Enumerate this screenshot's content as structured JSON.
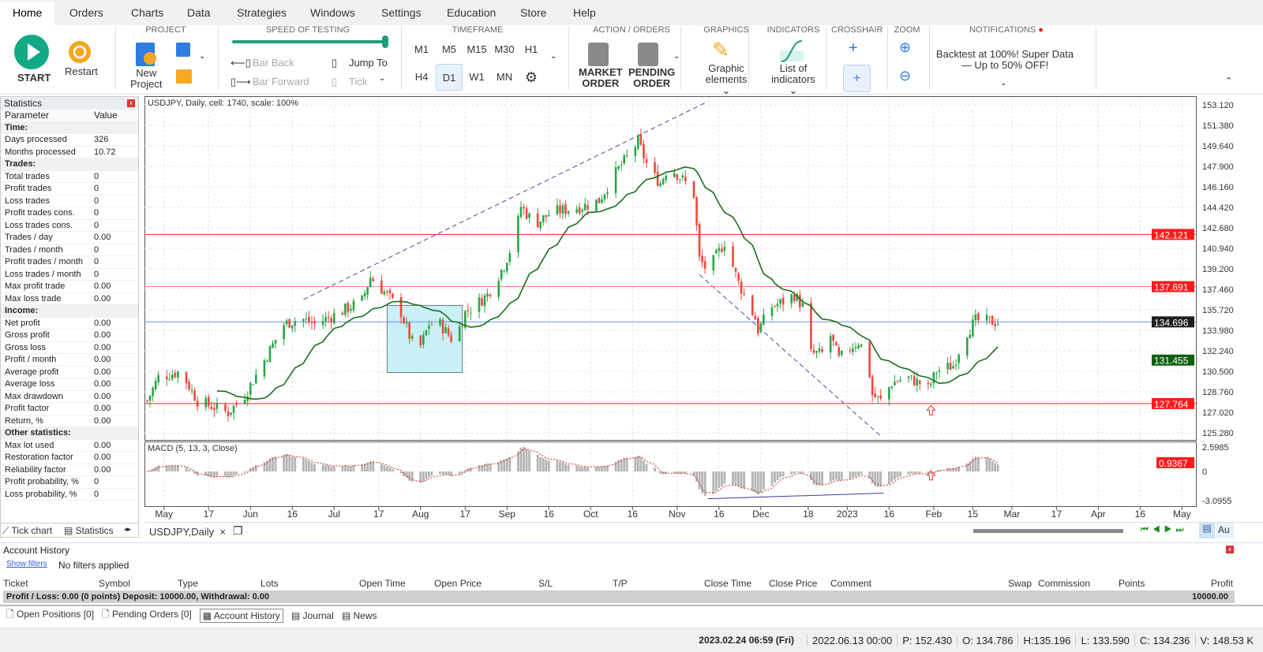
{
  "menu": [
    "Home",
    "Orders",
    "Charts",
    "Data",
    "Strategies",
    "Windows",
    "Settings",
    "Education",
    "Store",
    "Help"
  ],
  "ribbon": {
    "start": "START",
    "restart": "Restart",
    "project": "PROJECT",
    "new_project": [
      "New",
      "Project"
    ],
    "speed": "SPEED OF TESTING",
    "speed_value": 1.0,
    "bar_back": "Bar Back",
    "bar_forward": "Bar Forward",
    "jump_to": "Jump To",
    "tick": "Tick",
    "timeframe": "TIMEFRAME",
    "tf_row1": [
      "M1",
      "M5",
      "M15",
      "M30",
      "H1"
    ],
    "tf_row2": [
      "H4",
      "D1",
      "W1",
      "MN"
    ],
    "tf_selected": "D1",
    "action": "ACTION / ORDERS",
    "market": [
      "MARKET",
      "ORDER"
    ],
    "pending": [
      "PENDING",
      "ORDER"
    ],
    "graphics": "GRAPHICS",
    "graphic_elements": [
      "Graphic",
      "elements"
    ],
    "indicators": "INDICATORS",
    "list_indicators": [
      "List of",
      "indicators"
    ],
    "crosshair": "CROSSHAIR",
    "zoom": "ZOOM",
    "notifications": "NOTIFICATIONS",
    "notif_text": [
      "Backtest at 100%! Super Data",
      "— Up to 50% OFF!"
    ]
  },
  "stats": {
    "title": "Statistics",
    "col_param": "Parameter",
    "col_value": "Value",
    "rows": [
      {
        "s": "Time:"
      },
      {
        "p": "Days processed",
        "v": "326"
      },
      {
        "p": "Months processed",
        "v": "10.72"
      },
      {
        "s": "Trades:"
      },
      {
        "p": "Total trades",
        "v": "0"
      },
      {
        "p": "Profit trades",
        "v": "0"
      },
      {
        "p": "Loss trades",
        "v": "0"
      },
      {
        "p": "Profit trades cons.",
        "v": "0"
      },
      {
        "p": "Loss trades cons.",
        "v": "0"
      },
      {
        "p": "Trades / day",
        "v": "0.00"
      },
      {
        "p": "Trades / month",
        "v": "0"
      },
      {
        "p": "Profit trades / month",
        "v": "0"
      },
      {
        "p": "Loss trades / month",
        "v": "0"
      },
      {
        "p": "Max profit trade",
        "v": "0.00"
      },
      {
        "p": "Max loss trade",
        "v": "0.00"
      },
      {
        "s": "Income:"
      },
      {
        "p": "Net profit",
        "v": "0.00"
      },
      {
        "p": "Gross profit",
        "v": "0.00"
      },
      {
        "p": "Gross loss",
        "v": "0.00"
      },
      {
        "p": "Profit / month",
        "v": "0.00"
      },
      {
        "p": "Average profit",
        "v": "0.00"
      },
      {
        "p": "Average loss",
        "v": "0.00"
      },
      {
        "p": "Max drawdown",
        "v": "0.00"
      },
      {
        "p": "Profit factor",
        "v": "0.00"
      },
      {
        "p": "Return, %",
        "v": "0.00"
      },
      {
        "s": "Other statistics:"
      },
      {
        "p": "Max lot used",
        "v": "0.00"
      },
      {
        "p": "Restoration factor",
        "v": "0.00"
      },
      {
        "p": "Reliability factor",
        "v": "0.00"
      },
      {
        "p": "Profit probability, %",
        "v": "0"
      },
      {
        "p": "Loss probability, %",
        "v": "0"
      }
    ],
    "tabs": [
      "Tick chart",
      "Statistics"
    ]
  },
  "chart_tab": "USDJPY,Daily",
  "chart_data": {
    "type": "candlestick",
    "title": "USDJPY, Daily, cell: 1740, scale: 100%",
    "xlim": [
      "2022-04-24",
      "2023-05-06"
    ],
    "ylim": [
      125.28,
      153.12
    ],
    "yticks": [
      "153.120",
      "151.380",
      "149.640",
      "147.900",
      "146.160",
      "144.420",
      "142.680",
      "140.940",
      "139.200",
      "137.460",
      "135.720",
      "133.980",
      "132.240",
      "130.500",
      "128.760",
      "127.020",
      "125.280"
    ],
    "xticks": [
      [
        "2022-05-01",
        "May"
      ],
      [
        "2022-05-17",
        "17"
      ],
      [
        "2022-06-01",
        "Jun"
      ],
      [
        "2022-06-16",
        "16"
      ],
      [
        "2022-07-01",
        "Jul"
      ],
      [
        "2022-07-17",
        "17"
      ],
      [
        "2022-08-01",
        "Aug"
      ],
      [
        "2022-08-17",
        "17"
      ],
      [
        "2022-09-01",
        "Sep"
      ],
      [
        "2022-09-16",
        "16"
      ],
      [
        "2022-10-01",
        "Oct"
      ],
      [
        "2022-10-16",
        "16"
      ],
      [
        "2022-11-01",
        "Nov"
      ],
      [
        "2022-11-16",
        "16"
      ],
      [
        "2022-12-01",
        "Dec"
      ],
      [
        "2022-12-18",
        "18"
      ],
      [
        "2023-01-01",
        "2023"
      ],
      [
        "2023-01-16",
        "16"
      ],
      [
        "2023-02-01",
        "Feb"
      ],
      [
        "2023-02-15",
        "15"
      ],
      [
        "2023-03-01",
        "Mar"
      ],
      [
        "2023-03-17",
        "17"
      ],
      [
        "2023-04-01",
        "Apr"
      ],
      [
        "2023-04-16",
        "16"
      ],
      [
        "2023-05-01",
        "May"
      ]
    ],
    "close_anchors": [
      [
        "2022-04-25",
        128
      ],
      [
        "2022-04-29",
        130
      ],
      [
        "2022-05-07",
        130.5
      ],
      [
        "2022-05-13",
        128
      ],
      [
        "2022-05-24",
        127
      ],
      [
        "2022-05-30",
        128.5
      ],
      [
        "2022-06-05",
        131
      ],
      [
        "2022-06-13",
        134.5
      ],
      [
        "2022-06-19",
        135
      ],
      [
        "2022-06-24",
        134.5
      ],
      [
        "2022-07-03",
        135.5
      ],
      [
        "2022-07-11",
        136.5
      ],
      [
        "2022-07-14",
        138.5
      ],
      [
        "2022-07-20",
        137
      ],
      [
        "2022-07-25",
        135.5
      ],
      [
        "2022-07-28",
        133.5
      ],
      [
        "2022-07-31",
        132
      ],
      [
        "2022-08-04",
        134.5
      ],
      [
        "2022-08-08",
        134.5
      ],
      [
        "2022-08-13",
        133
      ],
      [
        "2022-08-17",
        135.5
      ],
      [
        "2022-08-20",
        136
      ],
      [
        "2022-08-25",
        137
      ],
      [
        "2022-08-31",
        139.5
      ],
      [
        "2022-09-04",
        142
      ],
      [
        "2022-09-06",
        144.5
      ],
      [
        "2022-09-11",
        143
      ],
      [
        "2022-09-17",
        144
      ],
      [
        "2022-09-28",
        144.5
      ],
      [
        "2022-10-04",
        145
      ],
      [
        "2022-10-09",
        147
      ],
      [
        "2022-10-15",
        149
      ],
      [
        "2022-10-18",
        150
      ],
      [
        "2022-10-22",
        147.5
      ],
      [
        "2022-10-26",
        146.5
      ],
      [
        "2022-10-29",
        148
      ],
      [
        "2022-11-04",
        146.5
      ],
      [
        "2022-11-07",
        145.5
      ],
      [
        "2022-11-09",
        140
      ],
      [
        "2022-11-12",
        139
      ],
      [
        "2022-11-18",
        141.5
      ],
      [
        "2022-11-23",
        138
      ],
      [
        "2022-11-29",
        135
      ],
      [
        "2022-11-30",
        134
      ],
      [
        "2022-12-05",
        136
      ],
      [
        "2022-12-10",
        136.5
      ],
      [
        "2022-12-13",
        137
      ],
      [
        "2022-12-16",
        136
      ],
      [
        "2022-12-19",
        132
      ],
      [
        "2022-12-23",
        132
      ],
      [
        "2022-12-26",
        133.5
      ],
      [
        "2022-12-29",
        131.5
      ],
      [
        "2023-01-02",
        132.5
      ],
      [
        "2023-01-05",
        133
      ],
      [
        "2023-01-08",
        132
      ],
      [
        "2023-01-10",
        128.5
      ],
      [
        "2023-01-13",
        128
      ],
      [
        "2023-01-17",
        129.5
      ],
      [
        "2023-01-22",
        130
      ],
      [
        "2023-01-27",
        129.5
      ],
      [
        "2023-01-30",
        129
      ],
      [
        "2023-02-02",
        130.5
      ],
      [
        "2023-02-08",
        131
      ],
      [
        "2023-02-12",
        133.5
      ],
      [
        "2023-02-16",
        134.8
      ],
      [
        "2023-02-24",
        134.7
      ]
    ],
    "ma_period": 20,
    "hlines": [
      {
        "value": 142.121,
        "label": "142.121",
        "color": "#ff2020"
      },
      {
        "value": 137.691,
        "label": "137.691",
        "color": "#ff8080"
      },
      {
        "value": 134.696,
        "label": "134.696",
        "color": "#6f8ff0",
        "tag": "#1e1e1e"
      },
      {
        "value": 127.764,
        "label": "127.764",
        "color": "#ff2020"
      }
    ],
    "ma_label": "131.455",
    "trendlines": [
      [
        [
          "2022-06-20",
          136.6
        ],
        [
          "2022-11-12",
          153.4
        ]
      ],
      [
        [
          "2022-11-09",
          138.7
        ],
        [
          "2023-01-13",
          125.0
        ]
      ]
    ],
    "rectangle": [
      [
        "2022-07-20",
        136.1
      ],
      [
        "2022-08-16",
        130.4
      ]
    ],
    "arrow_date": "2023-01-31",
    "macd": {
      "title": "MACD (5, 13, 3, Close)",
      "ylim": [
        -3.0955,
        2.5985
      ],
      "yticks": [
        "2.5985",
        "0",
        "-3.0955"
      ],
      "last": "0.9367",
      "line": [
        [
          "2022-11-12",
          -2.9
        ],
        [
          "2023-01-14",
          -2.3
        ]
      ]
    },
    "colors": {
      "up": "#29a645",
      "down": "#f0463c",
      "ma": "#1b6e1b",
      "grid": "#dde8ee"
    }
  },
  "account": {
    "title": "Account History",
    "show_filters": "Show filters",
    "filters": "No filters applied",
    "columns": [
      "Ticket",
      "Symbol",
      "Type",
      "Lots",
      "Open Time",
      "Open Price",
      "S/L",
      "T/P",
      "Close Time",
      "Close Price",
      "Comment",
      "Swap",
      "Commission",
      "Points",
      "Profit"
    ],
    "summary": "Profit / Loss: 0.00 (0 points) Deposit: 10000.00, Withdrawal: 0.00",
    "summary_profit": "10000.00",
    "tabs": [
      "Open Positions [0]",
      "Pending Orders [0]",
      "Account History",
      "Journal",
      "News"
    ]
  },
  "status": [
    "2023.02.24 06:59 (Fri)",
    "2022.06.13 00:00",
    "P: 152.430",
    "O: 134.786",
    "H:135.196",
    "L: 133.590",
    "C: 134.236",
    "V: 148.53 K"
  ],
  "nav_au": "Au"
}
